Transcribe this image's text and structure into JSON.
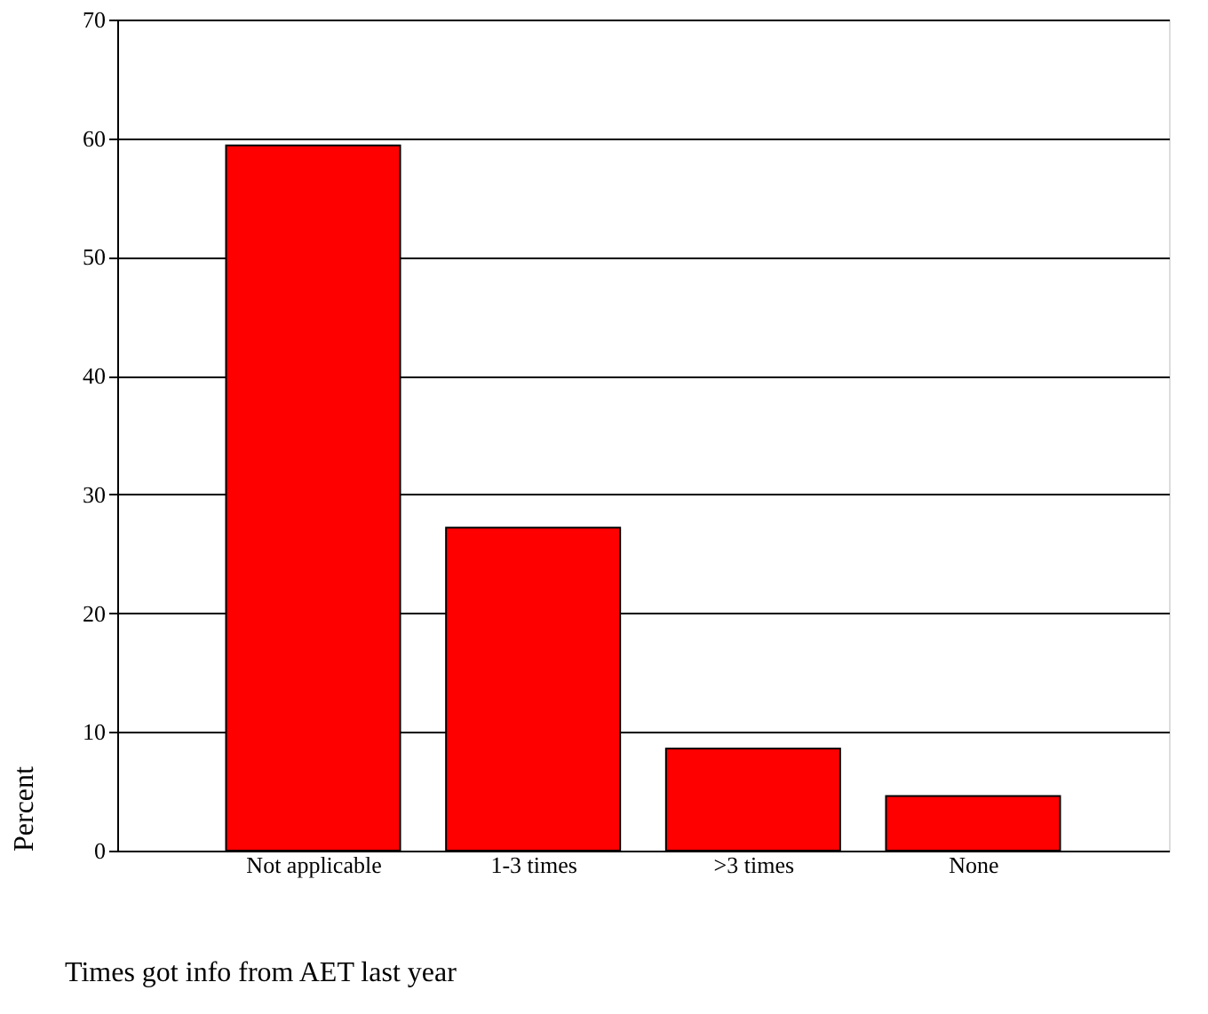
{
  "chart_data": {
    "type": "bar",
    "xlabel": "Times got info from AET last year",
    "ylabel": "Percent",
    "categories": [
      "Not applicable",
      "1-3 times",
      ">3 times",
      "None"
    ],
    "values": [
      59.4,
      27.2,
      8.6,
      4.6
    ],
    "color": "#ff0000",
    "ylim": [
      0,
      70
    ],
    "yticks": [
      0,
      10,
      20,
      30,
      40,
      50,
      60,
      70
    ],
    "grid": "y"
  }
}
